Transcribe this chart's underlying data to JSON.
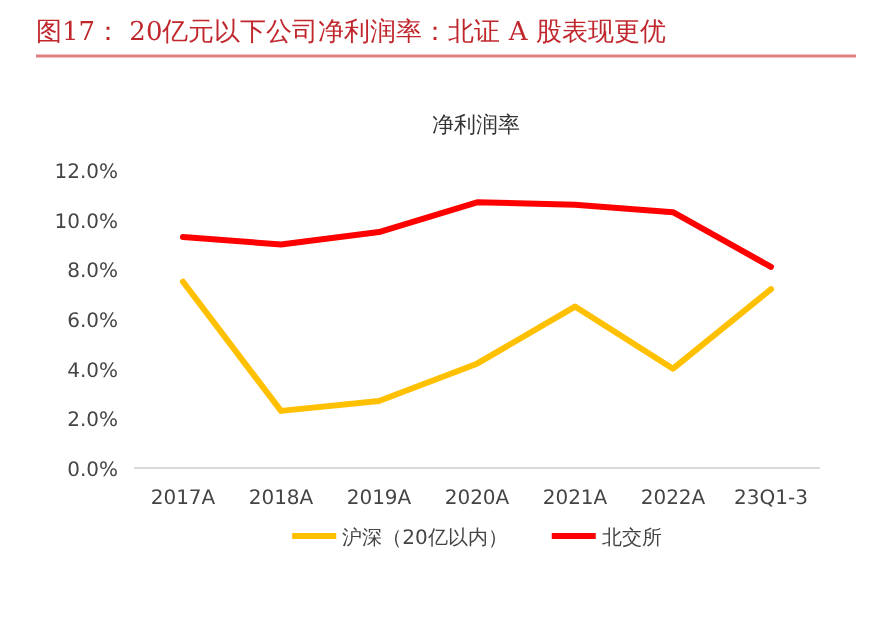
{
  "chart_data": {
    "type": "line",
    "title": "图17：  20亿元以下公司净利润率：北证 A 股表现更优",
    "subtitle": "净利润率",
    "categories": [
      "2017A",
      "2018A",
      "2019A",
      "2020A",
      "2021A",
      "2022A",
      "23Q1-3"
    ],
    "series": [
      {
        "name": "沪深（20亿以内）",
        "color": "#ffc000",
        "values": [
          7.5,
          2.3,
          2.7,
          4.2,
          6.5,
          4.0,
          7.2
        ]
      },
      {
        "name": "北交所",
        "color": "#ff0000",
        "values": [
          9.3,
          9.0,
          9.5,
          10.7,
          10.6,
          10.3,
          8.1
        ]
      }
    ],
    "ylim": [
      0,
      12
    ],
    "yticks": [
      {
        "value": 0,
        "label": "0.0%"
      },
      {
        "value": 2,
        "label": "2.0%"
      },
      {
        "value": 4,
        "label": "4.0%"
      },
      {
        "value": 6,
        "label": "6.0%"
      },
      {
        "value": 8,
        "label": "8.0%"
      },
      {
        "value": 10,
        "label": "10.0%"
      },
      {
        "value": 12,
        "label": "12.0%"
      }
    ],
    "grid": false,
    "legend": "bottom",
    "marker": "none",
    "line_style": "solid"
  }
}
